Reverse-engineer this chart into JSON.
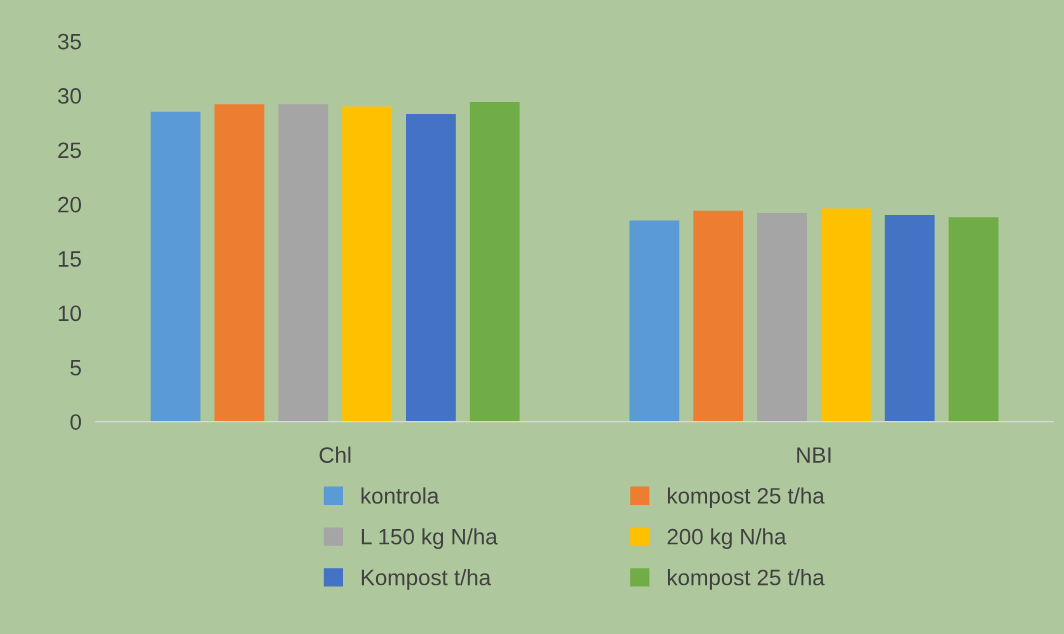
{
  "chart_data": {
    "type": "bar",
    "categories": [
      "Chl",
      "NBI"
    ],
    "series": [
      {
        "name": "kontrola",
        "color": "#5b9bd5",
        "values": [
          28.5,
          18.5
        ]
      },
      {
        "name": "kompost 25 t/ha",
        "color": "#ed7d31",
        "values": [
          29.2,
          19.4
        ]
      },
      {
        "name": "L 150 kg N/ha",
        "color": "#a5a5a5",
        "values": [
          29.2,
          19.2
        ]
      },
      {
        "name": "200 kg N/ha",
        "color": "#ffc000",
        "values": [
          29.0,
          19.6
        ]
      },
      {
        "name": "Kompost t/ha",
        "color": "#4472c4",
        "values": [
          28.3,
          19.0
        ]
      },
      {
        "name": "kompost 25 t/ha",
        "color": "#70ad47",
        "values": [
          29.4,
          18.8
        ]
      }
    ],
    "ylim": [
      0,
      35
    ],
    "yticks": [
      0,
      5,
      10,
      15,
      20,
      25,
      30,
      35
    ],
    "grid": false,
    "legend": "bottom"
  }
}
